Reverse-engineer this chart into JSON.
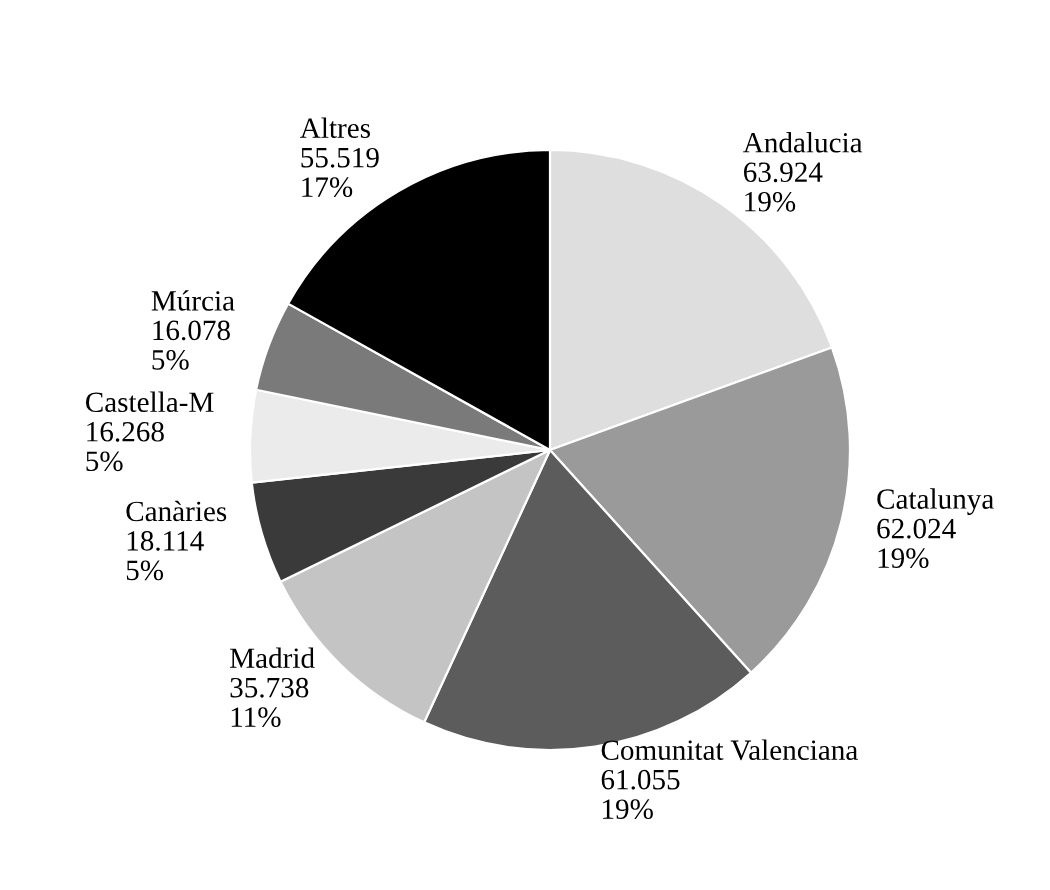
{
  "chart_data": {
    "type": "pie",
    "categories": [
      "Andalucia",
      "Catalunya",
      "Comunitat Valenciana",
      "Madrid",
      "Canàries",
      "Castella-M",
      "Múrcia",
      "Altres"
    ],
    "values": [
      63924,
      62024,
      61055,
      35738,
      18114,
      16268,
      16078,
      55519
    ],
    "value_labels": [
      "63.924\n19%",
      "62.024\n19%",
      "61.055\n19%",
      "35.738\n11%",
      "18.114\n5%",
      "16.268\n5%",
      "16.078\n5%",
      "55.519\n17%"
    ],
    "colors": [
      "#dedede",
      "#9a9a9a",
      "#5c5c5c",
      "#c4c4c4",
      "#3a3a3a",
      "#ebebeb",
      "#7a7a7a",
      "#000000"
    ]
  }
}
